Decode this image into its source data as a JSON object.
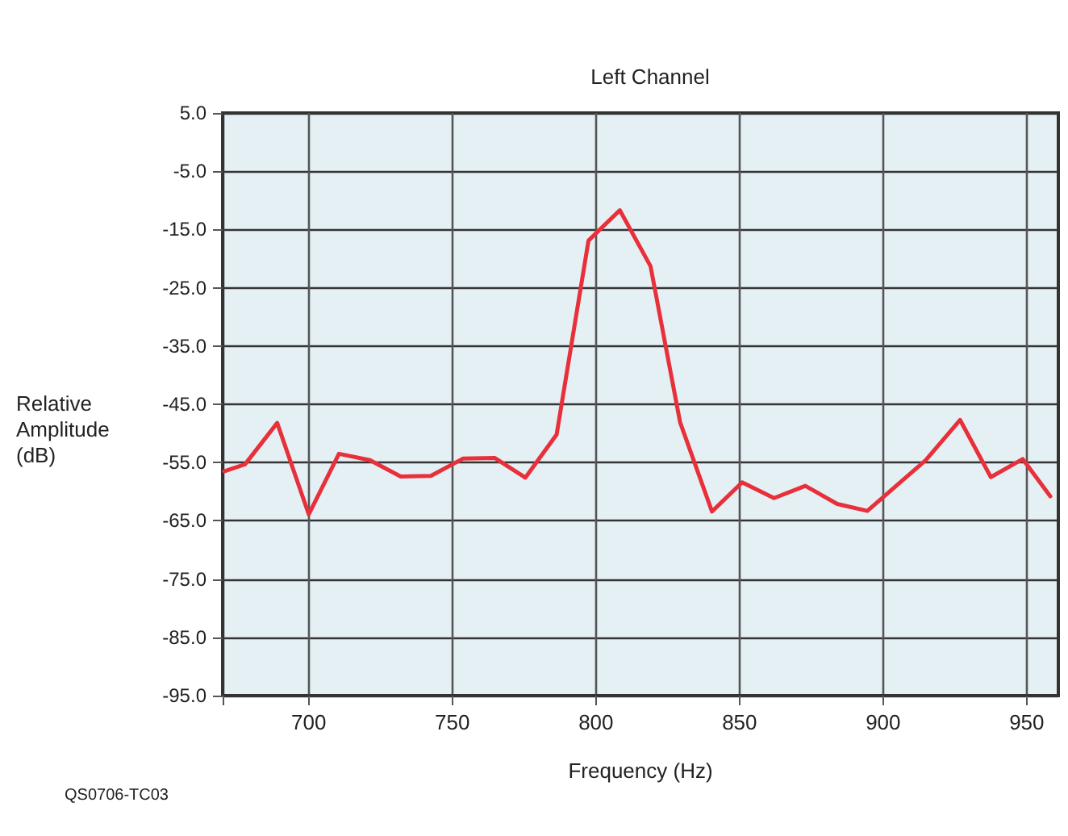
{
  "chart_data": {
    "type": "line",
    "title": "Left Channel",
    "xlabel": "Frequency (Hz)",
    "ylabel": "Relative Amplitude (dB)",
    "annotations": [
      "QS0706-TC03"
    ],
    "x": [
      670.5,
      677.8,
      689,
      700,
      710.5,
      721.3,
      732,
      742.5,
      753.8,
      764.7,
      775.4,
      786.3,
      797.4,
      808.3,
      819,
      829.3,
      840.4,
      850.9,
      862,
      872.9,
      884,
      894.5,
      914.8,
      926.8,
      937.5,
      948.6,
      958.2
    ],
    "series": [
      {
        "color": "#e8303a",
        "values": [
          -56.5,
          -55.3,
          -48.2,
          -63.9,
          -53.5,
          -54.6,
          -57.4,
          -57.3,
          -54.3,
          -54.2,
          -57.6,
          -50.2,
          -16.9,
          -11.7,
          -21.3,
          -48.1,
          -63.4,
          -58.4,
          -61.1,
          -59.0,
          -62.1,
          -63.3,
          -54.6,
          -47.7,
          -57.5,
          -54.4,
          -60.8
        ]
      }
    ],
    "xlim": [
      670,
      961
    ],
    "xticks": [
      700,
      750,
      800,
      850,
      900,
      950
    ],
    "ylim": [
      -95,
      5
    ],
    "yticks": [
      {
        "value": 5,
        "label": "5.0"
      },
      {
        "value": -5,
        "label": "-5.0"
      },
      {
        "value": -15,
        "label": "-15.0"
      },
      {
        "value": -25,
        "label": "-25.0"
      },
      {
        "value": -35,
        "label": "-35.0"
      },
      {
        "value": -45,
        "label": "-45.0"
      },
      {
        "value": -55,
        "label": "-55.0"
      },
      {
        "value": -65,
        "label": "-65.0"
      },
      {
        "value": -75,
        "label": "-75.0"
      },
      {
        "value": -85,
        "label": "-85.0"
      },
      {
        "value": -95,
        "label": "-95.0"
      }
    ],
    "grid": true,
    "line_style": "solid"
  }
}
